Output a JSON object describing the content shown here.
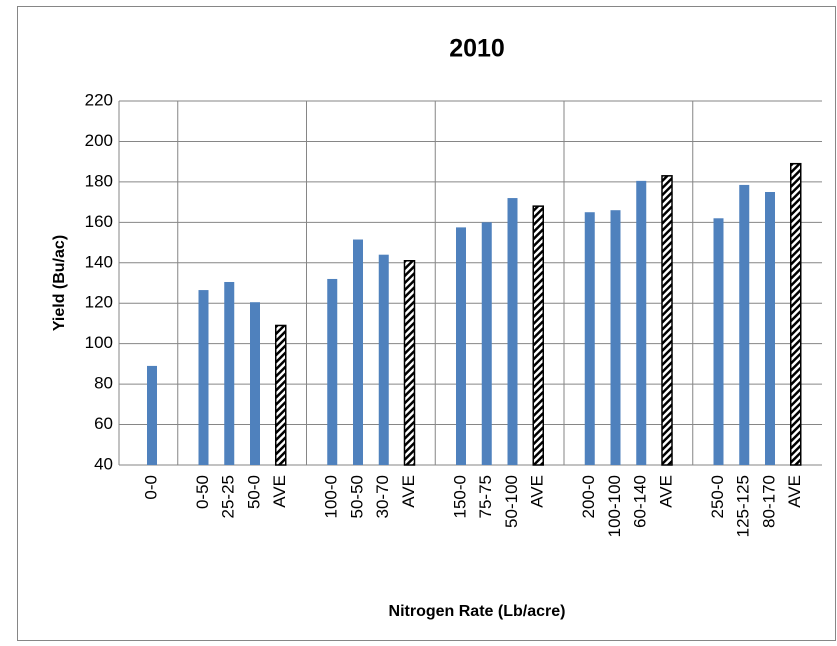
{
  "chart_data": {
    "type": "bar",
    "title": "2010",
    "x_label": "Nitrogen Rate (Lb/acre)",
    "y_label": "Yield (Bu/ac)",
    "categories": [
      "0-0",
      null,
      "0-50",
      "25-25",
      "50-0",
      "AVE",
      null,
      "100-0",
      "50-50",
      "30-70",
      "AVE",
      null,
      "150-0",
      "75-75",
      "50-100",
      "AVE",
      null,
      "200-0",
      "100-100",
      "60-140",
      "AVE",
      null,
      "250-0",
      "125-125",
      "80-170",
      "AVE"
    ],
    "values": [
      89,
      null,
      126.5,
      130.5,
      120.5,
      109,
      null,
      132,
      151.5,
      144,
      141,
      null,
      157.5,
      160,
      172,
      168,
      null,
      165,
      166,
      180.5,
      183,
      null,
      162,
      178.5,
      175,
      189
    ],
    "color": "#4f81bd",
    "highlight_category": "AVE",
    "ylim": [
      40,
      220
    ],
    "yticks": [
      40,
      60,
      80,
      100,
      120,
      140,
      160,
      180,
      200,
      220
    ],
    "grid": true
  }
}
